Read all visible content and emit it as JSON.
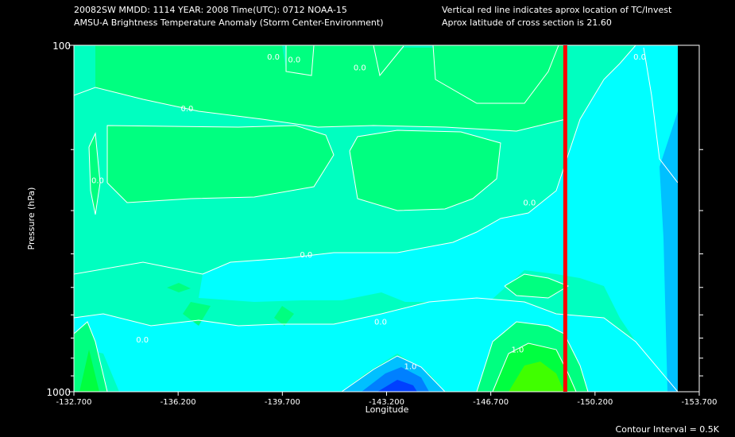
{
  "header": {
    "line1_left": "20082SW  MMDD: 1114 YEAR: 2008 Time(UTC): 0712 NOAA-15",
    "line2_left": "AMSU-A Brightness Temperature Anomaly (Storm Center-Environment)",
    "line1_right": "Vertical red line indicates aprox location of TC/Invest",
    "line2_right": "Aprox latitude of cross section is 21.60"
  },
  "footer": {
    "contour_interval": "Contour Interval = 0.5K"
  },
  "chart_data": {
    "type": "contour",
    "xlabel": "Longitude",
    "ylabel": "Pressure (hPa)",
    "x_ticks": [
      -132.7,
      -136.2,
      -139.7,
      -143.2,
      -146.7,
      -150.2,
      -153.7
    ],
    "x_tick_labels": [
      "-132.700",
      "-136.200",
      "-139.700",
      "-143.200",
      "-146.700",
      "-150.200",
      "-153.700"
    ],
    "xlim": [
      -132.7,
      -153.7
    ],
    "y_scale": "log",
    "ylim": [
      1000,
      100
    ],
    "y_tick_labels": [
      "100",
      "1000"
    ],
    "tc_longitude": -149.2,
    "contour_interval_k": 0.5,
    "contour_labels": [
      {
        "text": "0.0",
        "lon": -139.4,
        "p": 110
      },
      {
        "text": "0.0",
        "lon": -140.1,
        "p": 112
      },
      {
        "text": "0.0",
        "lon": -142.3,
        "p": 118
      },
      {
        "text": "0.0",
        "lon": -136.5,
        "p": 155
      },
      {
        "text": "0.0",
        "lon": -133.5,
        "p": 250
      },
      {
        "text": "0.0",
        "lon": -148.0,
        "p": 290
      },
      {
        "text": "0.0",
        "lon": -151.7,
        "p": 110
      },
      {
        "text": "0.0",
        "lon": -140.5,
        "p": 410
      },
      {
        "text": "0.0",
        "lon": -143.0,
        "p": 640
      },
      {
        "text": "0.0",
        "lon": -135.0,
        "p": 720
      },
      {
        "text": "1.0",
        "lon": -147.6,
        "p": 770
      },
      {
        "text": "1.0",
        "lon": -144.0,
        "p": 860
      }
    ],
    "colors": {
      "neg1": "#0000ff",
      "neg05": "#0080ff",
      "zero_neg": "#00c0ff",
      "zero": "#00ffff",
      "pos_low": "#00ffc0",
      "pos": "#00ff80",
      "pos1": "#00ff40",
      "pos15": "#20ff00",
      "tc_line": "#ff0000"
    }
  }
}
